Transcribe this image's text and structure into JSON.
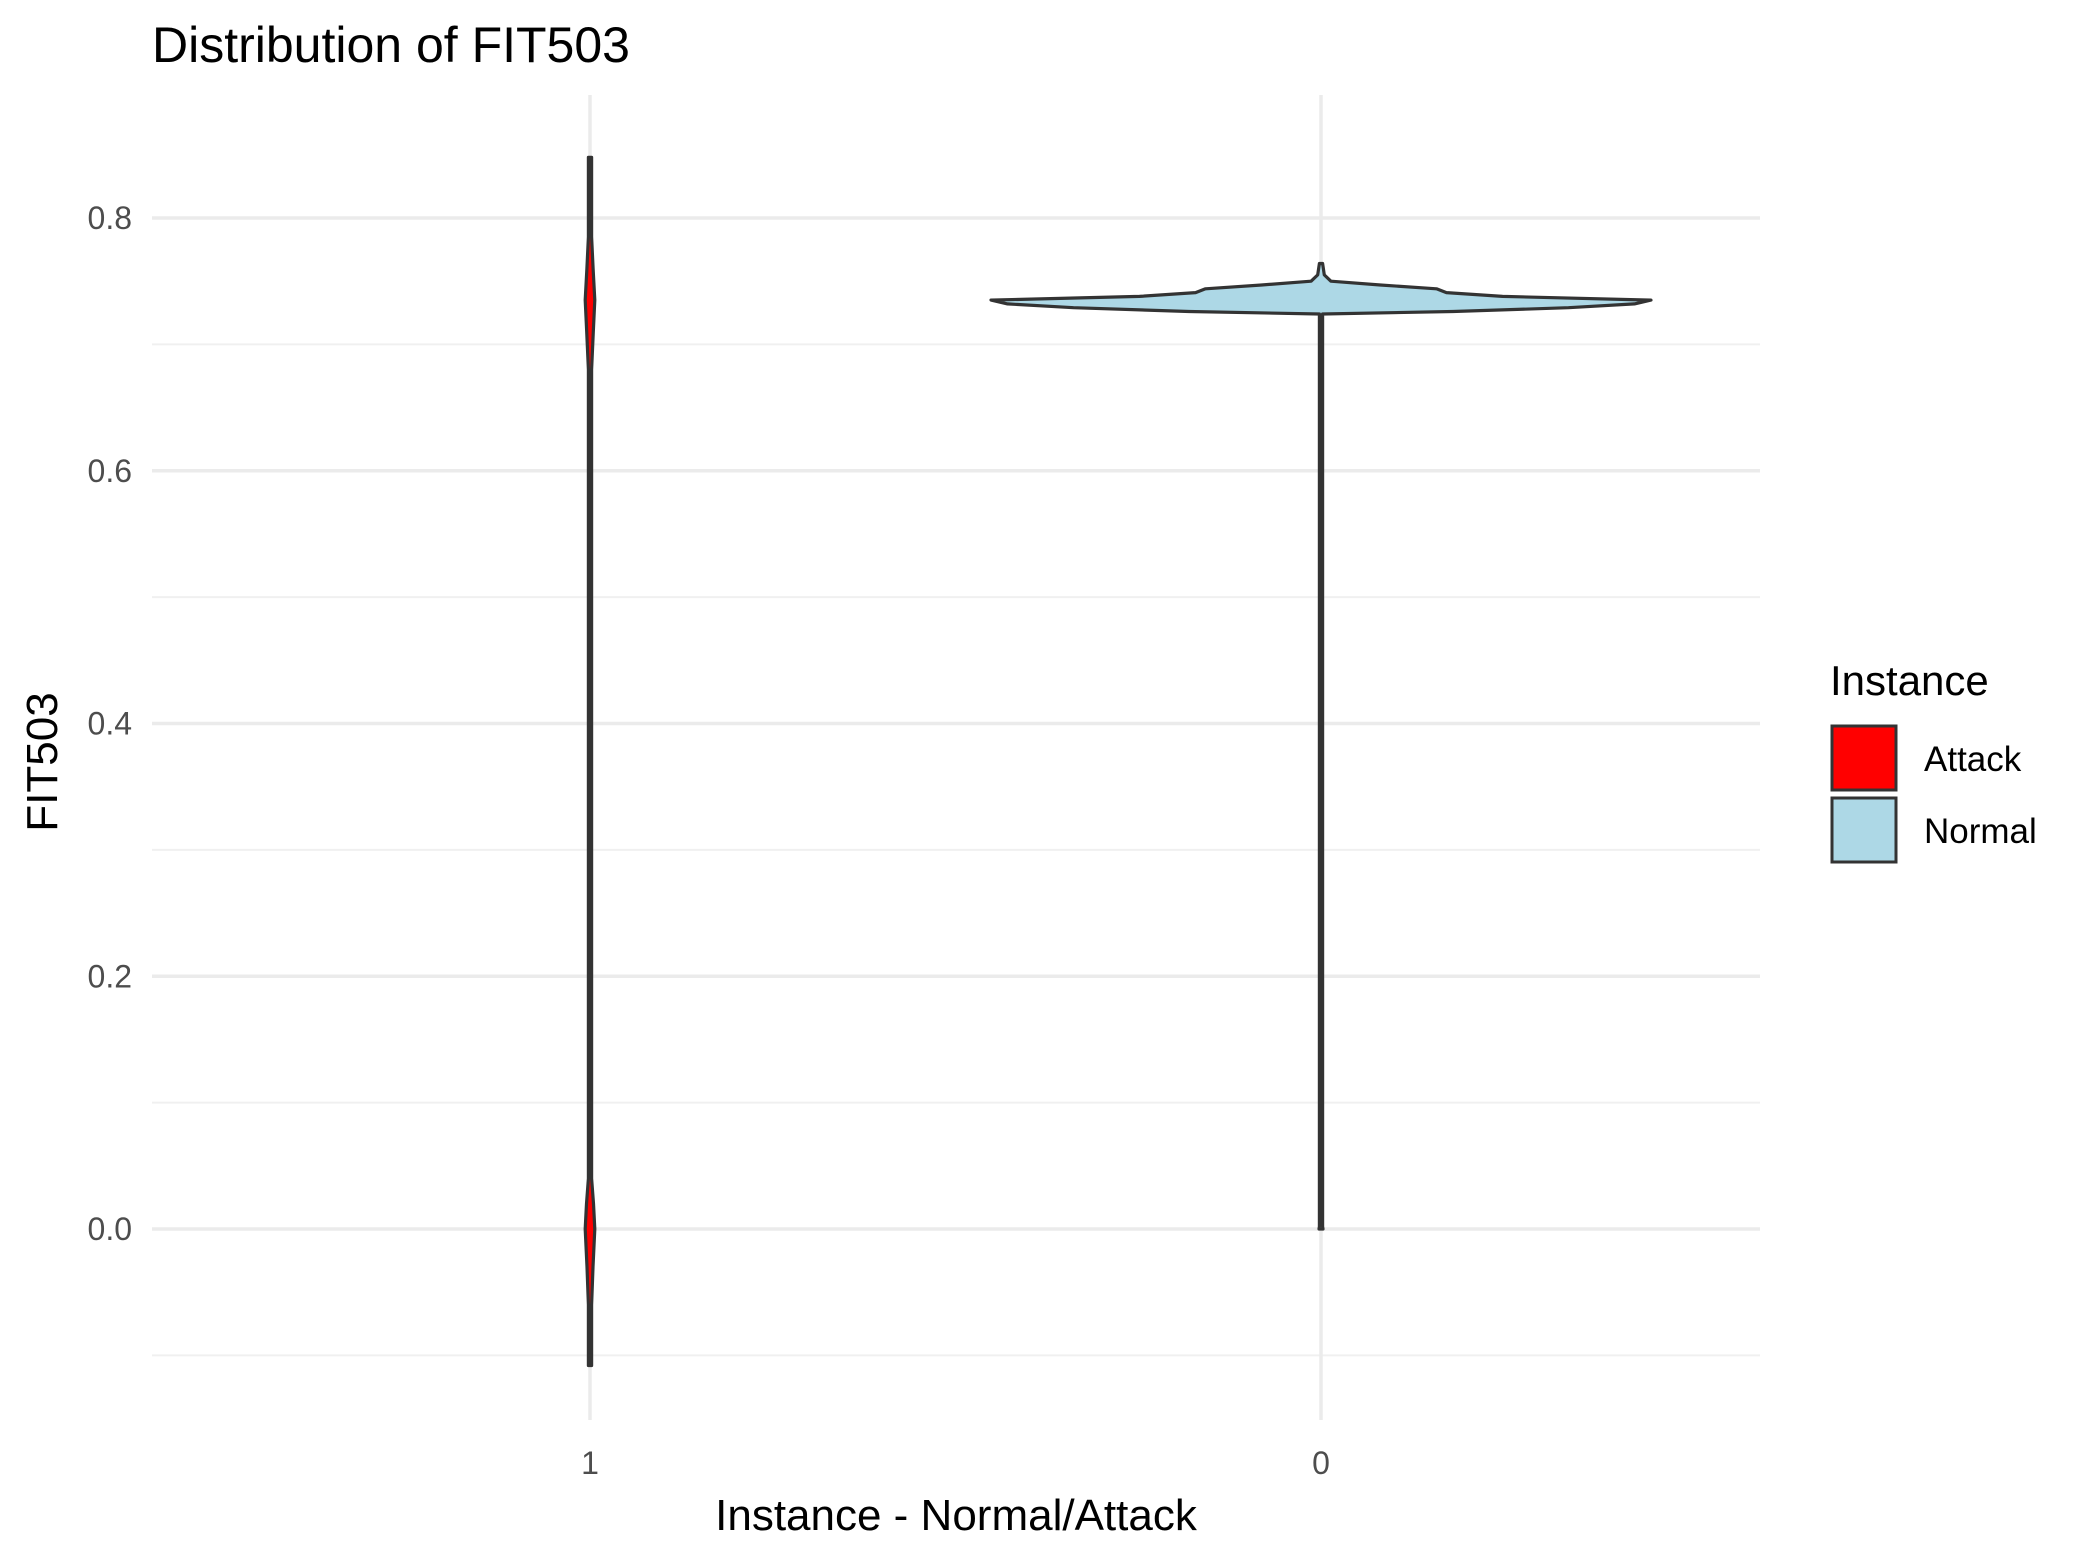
{
  "chart_data": {
    "type": "violin",
    "title": "Distribution of FIT503",
    "xlabel": "Instance - Normal/Attack",
    "ylabel": "FIT503",
    "categories": [
      "1",
      "0"
    ],
    "ylim": [
      -0.11,
      0.89
    ],
    "y_ticks": [
      0.0,
      0.2,
      0.4,
      0.6,
      0.8
    ],
    "y_tick_labels": [
      "0.0",
      "0.2",
      "0.4",
      "0.6",
      "0.8"
    ],
    "grid": true,
    "legend": {
      "title": "Instance",
      "position": "right",
      "entries": [
        {
          "label": "Attack",
          "color": "#ff0000"
        },
        {
          "label": "Normal",
          "color": "#add8e6"
        }
      ]
    },
    "series": [
      {
        "category": "1",
        "name": "Attack",
        "color": "#ff0000",
        "min": -0.108,
        "max": 0.848,
        "density": [
          [
            -0.108,
            0.0
          ],
          [
            -0.09,
            0.03
          ],
          [
            -0.06,
            0.1
          ],
          [
            -0.03,
            0.27
          ],
          [
            0.0,
            0.44
          ],
          [
            0.02,
            0.32
          ],
          [
            0.04,
            0.15
          ],
          [
            0.06,
            0.08
          ],
          [
            0.08,
            0.02
          ],
          [
            0.1,
            0.004
          ],
          [
            0.2,
            0.002
          ],
          [
            0.3,
            0.002
          ],
          [
            0.33,
            0.006
          ],
          [
            0.36,
            0.002
          ],
          [
            0.5,
            0.002
          ],
          [
            0.62,
            0.004
          ],
          [
            0.65,
            0.03
          ],
          [
            0.68,
            0.12
          ],
          [
            0.71,
            0.3
          ],
          [
            0.735,
            0.44
          ],
          [
            0.76,
            0.28
          ],
          [
            0.785,
            0.12
          ],
          [
            0.81,
            0.03
          ],
          [
            0.83,
            0.01
          ],
          [
            0.848,
            0.0
          ]
        ]
      },
      {
        "category": "0",
        "name": "Normal",
        "color": "#add8e6",
        "min": 0.0,
        "max": 0.764,
        "density": [
          [
            0.0,
            0.006
          ],
          [
            0.002,
            0.0
          ],
          [
            0.1,
            0.002
          ],
          [
            0.3,
            0.002
          ],
          [
            0.5,
            0.002
          ],
          [
            0.7,
            0.002
          ],
          [
            0.724,
            0.004
          ],
          [
            0.726,
            0.4
          ],
          [
            0.729,
            0.75
          ],
          [
            0.732,
            0.95
          ],
          [
            0.735,
            1.0
          ],
          [
            0.738,
            0.55
          ],
          [
            0.741,
            0.38
          ],
          [
            0.744,
            0.35
          ],
          [
            0.747,
            0.18
          ],
          [
            0.75,
            0.03
          ],
          [
            0.755,
            0.01
          ],
          [
            0.764,
            0.0
          ]
        ]
      }
    ]
  }
}
